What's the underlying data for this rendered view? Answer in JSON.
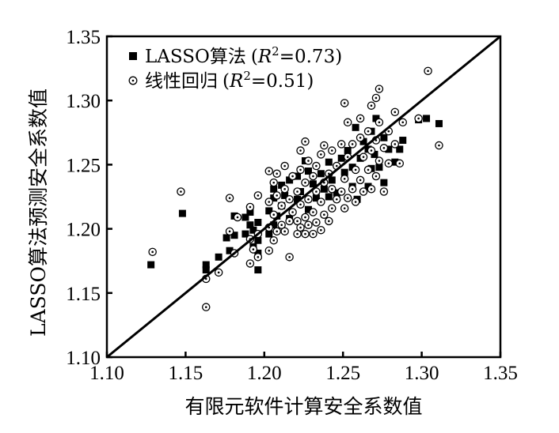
{
  "chart_data": {
    "type": "scatter",
    "title": "",
    "xlabel": "有限元软件计算安全系数值",
    "ylabel": "LASSO算法预测安全系数值",
    "xlim": [
      1.1,
      1.35
    ],
    "ylim": [
      1.1,
      1.35
    ],
    "x_ticks": [
      "1.10",
      "1.15",
      "1.20",
      "1.25",
      "1.30",
      "1.35"
    ],
    "y_ticks": [
      "1.10",
      "1.15",
      "1.20",
      "1.25",
      "1.30",
      "1.35"
    ],
    "grid": false,
    "legend": "top-left",
    "reference_line": {
      "from": [
        1.1,
        1.1
      ],
      "to": [
        1.35,
        1.35
      ]
    },
    "legend_entries": [
      {
        "marker": "filled-square",
        "method": "LASSO算法",
        "r": "R",
        "exp": "2",
        "val": "=0.73"
      },
      {
        "marker": "open-circle-dot",
        "method": "线性回归",
        "r": "R",
        "exp": "2",
        "val": "=0.51"
      }
    ],
    "series": [
      {
        "marker": "filled-square",
        "points": [
          [
            1.128,
            1.172
          ],
          [
            1.148,
            1.212
          ],
          [
            1.163,
            1.168
          ],
          [
            1.163,
            1.172
          ],
          [
            1.171,
            1.178
          ],
          [
            1.176,
            1.193
          ],
          [
            1.178,
            1.183
          ],
          [
            1.181,
            1.195
          ],
          [
            1.181,
            1.21
          ],
          [
            1.188,
            1.196
          ],
          [
            1.188,
            1.209
          ],
          [
            1.191,
            1.203
          ],
          [
            1.191,
            1.213
          ],
          [
            1.193,
            1.186
          ],
          [
            1.193,
            1.199
          ],
          [
            1.196,
            1.168
          ],
          [
            1.196,
            1.181
          ],
          [
            1.196,
            1.191
          ],
          [
            1.196,
            1.205
          ],
          [
            1.203,
            1.196
          ],
          [
            1.203,
            1.214
          ],
          [
            1.206,
            1.203
          ],
          [
            1.206,
            1.224
          ],
          [
            1.206,
            1.231
          ],
          [
            1.208,
            1.21
          ],
          [
            1.211,
            1.218
          ],
          [
            1.211,
            1.234
          ],
          [
            1.213,
            1.226
          ],
          [
            1.216,
            1.208
          ],
          [
            1.216,
            1.238
          ],
          [
            1.221,
            1.223
          ],
          [
            1.221,
            1.241
          ],
          [
            1.223,
            1.229
          ],
          [
            1.226,
            1.253
          ],
          [
            1.228,
            1.215
          ],
          [
            1.228,
            1.245
          ],
          [
            1.231,
            1.235
          ],
          [
            1.233,
            1.224
          ],
          [
            1.236,
            1.243
          ],
          [
            1.238,
            1.231
          ],
          [
            1.241,
            1.225
          ],
          [
            1.241,
            1.252
          ],
          [
            1.243,
            1.238
          ],
          [
            1.246,
            1.228
          ],
          [
            1.249,
            1.255
          ],
          [
            1.251,
            1.244
          ],
          [
            1.253,
            1.261
          ],
          [
            1.256,
            1.233
          ],
          [
            1.256,
            1.248
          ],
          [
            1.258,
            1.279
          ],
          [
            1.259,
            1.223
          ],
          [
            1.261,
            1.255
          ],
          [
            1.263,
            1.268
          ],
          [
            1.266,
            1.233
          ],
          [
            1.266,
            1.262
          ],
          [
            1.268,
            1.247
          ],
          [
            1.268,
            1.276
          ],
          [
            1.27,
            1.258
          ],
          [
            1.271,
            1.286
          ],
          [
            1.273,
            1.248
          ],
          [
            1.276,
            1.236
          ],
          [
            1.276,
            1.271
          ],
          [
            1.279,
            1.262
          ],
          [
            1.283,
            1.252
          ],
          [
            1.286,
            1.262
          ],
          [
            1.288,
            1.269
          ],
          [
            1.298,
            1.285
          ],
          [
            1.303,
            1.286
          ],
          [
            1.311,
            1.282
          ]
        ]
      },
      {
        "marker": "open-circle-dot",
        "points": [
          [
            1.129,
            1.182
          ],
          [
            1.147,
            1.229
          ],
          [
            1.163,
            1.139
          ],
          [
            1.163,
            1.161
          ],
          [
            1.171,
            1.166
          ],
          [
            1.178,
            1.198
          ],
          [
            1.178,
            1.224
          ],
          [
            1.181,
            1.181
          ],
          [
            1.183,
            1.209
          ],
          [
            1.191,
            1.173
          ],
          [
            1.191,
            1.192
          ],
          [
            1.191,
            1.217
          ],
          [
            1.193,
            1.184
          ],
          [
            1.196,
            1.178
          ],
          [
            1.196,
            1.196
          ],
          [
            1.196,
            1.226
          ],
          [
            1.203,
            1.183
          ],
          [
            1.203,
            1.201
          ],
          [
            1.203,
            1.221
          ],
          [
            1.203,
            1.245
          ],
          [
            1.206,
            1.191
          ],
          [
            1.206,
            1.211
          ],
          [
            1.206,
            1.236
          ],
          [
            1.208,
            1.198
          ],
          [
            1.208,
            1.226
          ],
          [
            1.208,
            1.243
          ],
          [
            1.211,
            1.203
          ],
          [
            1.211,
            1.218
          ],
          [
            1.213,
            1.198
          ],
          [
            1.213,
            1.231
          ],
          [
            1.213,
            1.249
          ],
          [
            1.216,
            1.178
          ],
          [
            1.216,
            1.206
          ],
          [
            1.216,
            1.223
          ],
          [
            1.218,
            1.213
          ],
          [
            1.218,
            1.241
          ],
          [
            1.221,
            1.196
          ],
          [
            1.221,
            1.206
          ],
          [
            1.221,
            1.229
          ],
          [
            1.223,
            1.201
          ],
          [
            1.223,
            1.219
          ],
          [
            1.223,
            1.246
          ],
          [
            1.223,
            1.261
          ],
          [
            1.226,
            1.196
          ],
          [
            1.226,
            1.209
          ],
          [
            1.226,
            1.236
          ],
          [
            1.226,
            1.268
          ],
          [
            1.228,
            1.203
          ],
          [
            1.228,
            1.223
          ],
          [
            1.228,
            1.253
          ],
          [
            1.231,
            1.196
          ],
          [
            1.231,
            1.213
          ],
          [
            1.231,
            1.241
          ],
          [
            1.233,
            1.205
          ],
          [
            1.233,
            1.229
          ],
          [
            1.233,
            1.249
          ],
          [
            1.236,
            1.199
          ],
          [
            1.236,
            1.221
          ],
          [
            1.236,
            1.258
          ],
          [
            1.238,
            1.211
          ],
          [
            1.238,
            1.236
          ],
          [
            1.238,
            1.265
          ],
          [
            1.241,
            1.206
          ],
          [
            1.241,
            1.243
          ],
          [
            1.243,
            1.216
          ],
          [
            1.243,
            1.231
          ],
          [
            1.243,
            1.261
          ],
          [
            1.246,
            1.223
          ],
          [
            1.246,
            1.249
          ],
          [
            1.249,
            1.229
          ],
          [
            1.249,
            1.266
          ],
          [
            1.251,
            1.216
          ],
          [
            1.251,
            1.239
          ],
          [
            1.251,
            1.298
          ],
          [
            1.253,
            1.224
          ],
          [
            1.253,
            1.256
          ],
          [
            1.253,
            1.283
          ],
          [
            1.256,
            1.231
          ],
          [
            1.256,
            1.266
          ],
          [
            1.258,
            1.221
          ],
          [
            1.258,
            1.246
          ],
          [
            1.261,
            1.238
          ],
          [
            1.261,
            1.271
          ],
          [
            1.261,
            1.286
          ],
          [
            1.263,
            1.229
          ],
          [
            1.263,
            1.256
          ],
          [
            1.266,
            1.246
          ],
          [
            1.266,
            1.276
          ],
          [
            1.268,
            1.231
          ],
          [
            1.268,
            1.261
          ],
          [
            1.268,
            1.296
          ],
          [
            1.271,
            1.241
          ],
          [
            1.271,
            1.269
          ],
          [
            1.271,
            1.302
          ],
          [
            1.273,
            1.253
          ],
          [
            1.273,
            1.283
          ],
          [
            1.273,
            1.309
          ],
          [
            1.276,
            1.229
          ],
          [
            1.276,
            1.263
          ],
          [
            1.279,
            1.251
          ],
          [
            1.279,
            1.276
          ],
          [
            1.283,
            1.266
          ],
          [
            1.283,
            1.291
          ],
          [
            1.286,
            1.251
          ],
          [
            1.288,
            1.283
          ],
          [
            1.298,
            1.286
          ],
          [
            1.304,
            1.323
          ],
          [
            1.311,
            1.265
          ]
        ]
      }
    ]
  }
}
